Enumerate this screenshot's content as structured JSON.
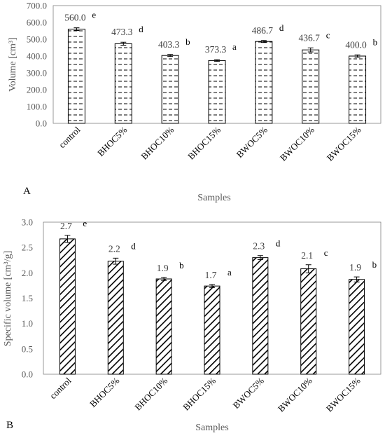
{
  "chart_data": [
    {
      "type": "bar",
      "panel_label": "A",
      "title": "",
      "xlabel": "Samples",
      "ylabel": "Volume [cm³]",
      "ylim": [
        0,
        700
      ],
      "ytick_step": 100,
      "yticks": [
        "0.0",
        "100.0",
        "200.0",
        "300.0",
        "400.0",
        "500.0",
        "600.0",
        "700.0"
      ],
      "categories": [
        "control",
        "BHOC5%",
        "BHOC10%",
        "BHOC15%",
        "BWOC5%",
        "BWOC10%",
        "BWOC15%"
      ],
      "values": [
        560.0,
        473.3,
        403.3,
        373.3,
        486.7,
        436.7,
        400.0
      ],
      "errors": [
        8,
        9,
        6,
        5,
        6,
        12,
        7
      ],
      "value_labels": [
        "560.0",
        "473.3",
        "403.3",
        "373.3",
        "486.7",
        "436.7",
        "400.0"
      ],
      "significance": [
        "e",
        "d",
        "b",
        "a",
        "d",
        "c",
        "b"
      ],
      "pattern": "horizontal-dashes",
      "grid": false,
      "legend": "none"
    },
    {
      "type": "bar",
      "panel_label": "B",
      "title": "",
      "xlabel": "Samples",
      "ylabel": "Specific volume [cm³/g]",
      "ylim": [
        0,
        3
      ],
      "ytick_step": 0.5,
      "yticks": [
        "0.0",
        "0.5",
        "1.0",
        "1.5",
        "2.0",
        "2.5",
        "3.0"
      ],
      "categories": [
        "control",
        "BHOC5%",
        "BHOC10%",
        "BHOC15%",
        "BWOC5%",
        "BWOC10%",
        "BWOC15%"
      ],
      "values": [
        2.67,
        2.23,
        1.88,
        1.74,
        2.3,
        2.08,
        1.87
      ],
      "errors": [
        0.07,
        0.06,
        0.03,
        0.03,
        0.04,
        0.08,
        0.05
      ],
      "value_labels": [
        "2.7",
        "2.2",
        "1.9",
        "1.7",
        "2.3",
        "2.1",
        "1.9"
      ],
      "significance": [
        "e",
        "d",
        "b",
        "a",
        "d",
        "c",
        "b"
      ],
      "pattern": "diagonal-stripes",
      "grid": false,
      "legend": "none"
    }
  ]
}
